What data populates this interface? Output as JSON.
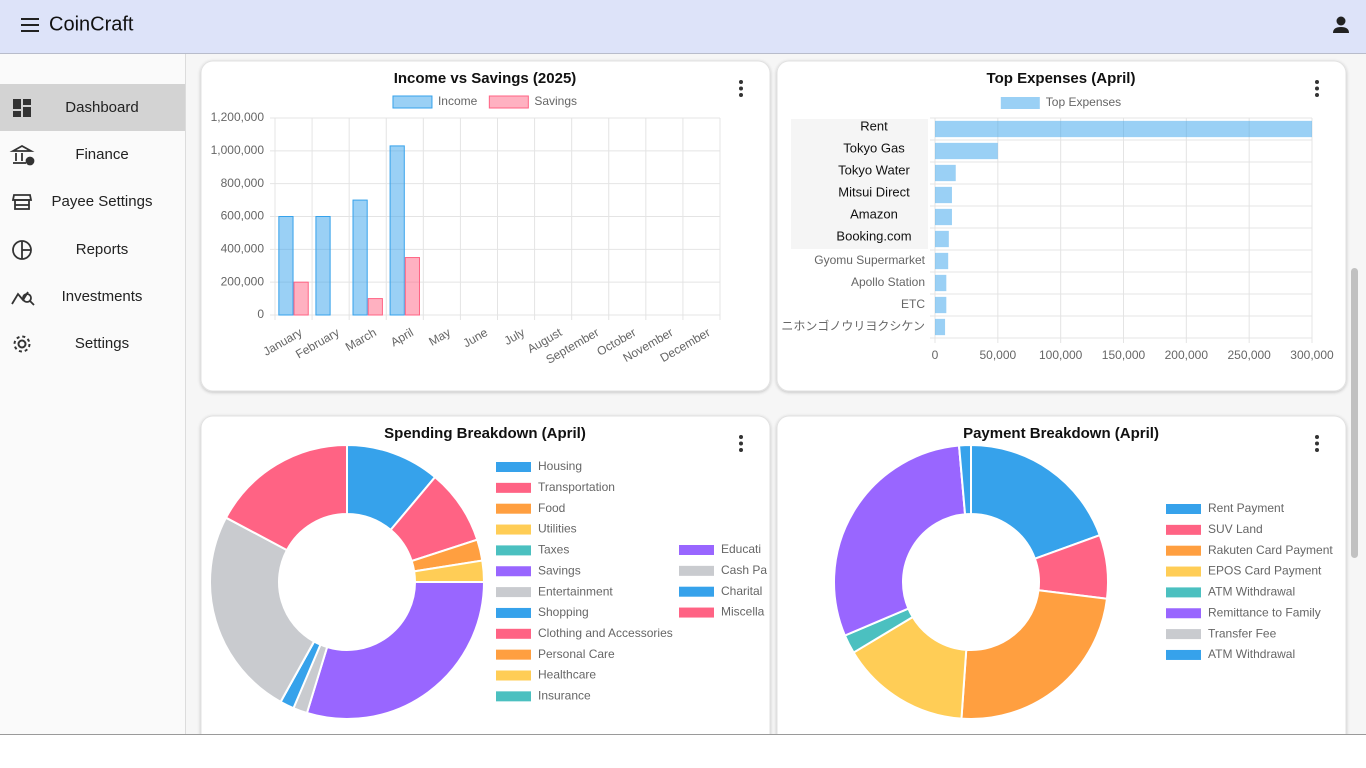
{
  "app": {
    "title": "CoinCraft",
    "nav": [
      "Dashboard",
      "Finance",
      "Payee Settings",
      "Reports",
      "Investments",
      "Settings"
    ]
  },
  "chart_data": [
    {
      "type": "bar",
      "title": "Income vs Savings (2025)",
      "categories": [
        "January",
        "February",
        "March",
        "April",
        "May",
        "June",
        "July",
        "August",
        "September",
        "October",
        "November",
        "December"
      ],
      "series": [
        {
          "name": "Income",
          "color": "#36a2eb",
          "values": [
            600000,
            600000,
            700000,
            1030000,
            null,
            null,
            null,
            null,
            null,
            null,
            null,
            null
          ]
        },
        {
          "name": "Savings",
          "color": "#ff6384",
          "values": [
            200000,
            null,
            100000,
            350000,
            null,
            null,
            null,
            null,
            null,
            null,
            null,
            null
          ]
        }
      ],
      "ylim": [
        0,
        1200000
      ],
      "yticks": [
        0,
        {
          "value": 200000,
          "label": "200,000"
        },
        {
          "value": 400000,
          "label": "400,000"
        },
        {
          "value": 600000,
          "label": "600,000"
        },
        {
          "value": 800000,
          "label": "800,000"
        },
        {
          "value": 1000000,
          "label": "1,000,000"
        },
        {
          "value": 1200000,
          "label": "1,200,000"
        }
      ],
      "grid": true,
      "legend": "top"
    },
    {
      "type": "bar",
      "orientation": "horizontal",
      "title": "Top Expenses (April)",
      "categories": [
        "Rent",
        "Tokyo Gas",
        "Tokyo Water",
        "Mitsui Direct",
        "Amazon",
        "Booking.com",
        "Gyomu Supermarket",
        "Apollo Station",
        "ETC",
        "ニホンゴノウリヨクシケン"
      ],
      "series": [
        {
          "name": "Top Expenses",
          "color": "#36a2eb",
          "values": [
            300000,
            50000,
            16500,
            13500,
            13500,
            11000,
            10500,
            9000,
            9000,
            8000
          ]
        }
      ],
      "xlim": [
        0,
        300000
      ],
      "xticks": [
        0,
        {
          "value": 50000,
          "label": "50,000"
        },
        {
          "value": 100000,
          "label": "100,000"
        },
        {
          "value": 150000,
          "label": "150,000"
        },
        {
          "value": 200000,
          "label": "200,000"
        },
        {
          "value": 250000,
          "label": "250,000"
        },
        {
          "value": 300000,
          "label": "300,000"
        }
      ],
      "grid": true,
      "legend": "top"
    },
    {
      "type": "doughnut",
      "title": "Spending Breakdown (April)",
      "categories": [
        "Housing",
        "Transportation",
        "Food",
        "Utilities",
        "Taxes",
        "Savings",
        "Entertainment",
        "Shopping",
        "Clothing and Accessories",
        "Personal Care",
        "Healthcare",
        "Insurance",
        "Educati",
        "Cash Pa",
        "Charital",
        "Miscella"
      ],
      "values": [
        40,
        32,
        9,
        9,
        0,
        107,
        6,
        6,
        0,
        0,
        0,
        0,
        0,
        89,
        0,
        62
      ],
      "colors": [
        "#36a2eb",
        "#ff6384",
        "#ff9f40",
        "#ffcd56",
        "#4bc0c0",
        "#9966ff",
        "#c9cbcf",
        "#36a2eb",
        "#ff6384",
        "#ff9f40",
        "#ffcd56",
        "#4bc0c0",
        "#9966ff",
        "#c9cbcf",
        "#36a2eb",
        "#ff6384"
      ],
      "legend": "right"
    },
    {
      "type": "doughnut",
      "title": "Payment Breakdown (April)",
      "categories": [
        "Rent Payment",
        "SUV Land",
        "Rakuten Card Payment",
        "EPOS Card Payment",
        "ATM Withdrawal",
        "Remittance to Family",
        "Transfer Fee",
        "ATM Withdrawal"
      ],
      "values": [
        70,
        27,
        87,
        55,
        8,
        108,
        0,
        5
      ],
      "colors": [
        "#36a2eb",
        "#ff6384",
        "#ff9f40",
        "#ffcd56",
        "#4bc0c0",
        "#9966ff",
        "#c9cbcf",
        "#36a2eb"
      ],
      "legend": "right"
    }
  ]
}
